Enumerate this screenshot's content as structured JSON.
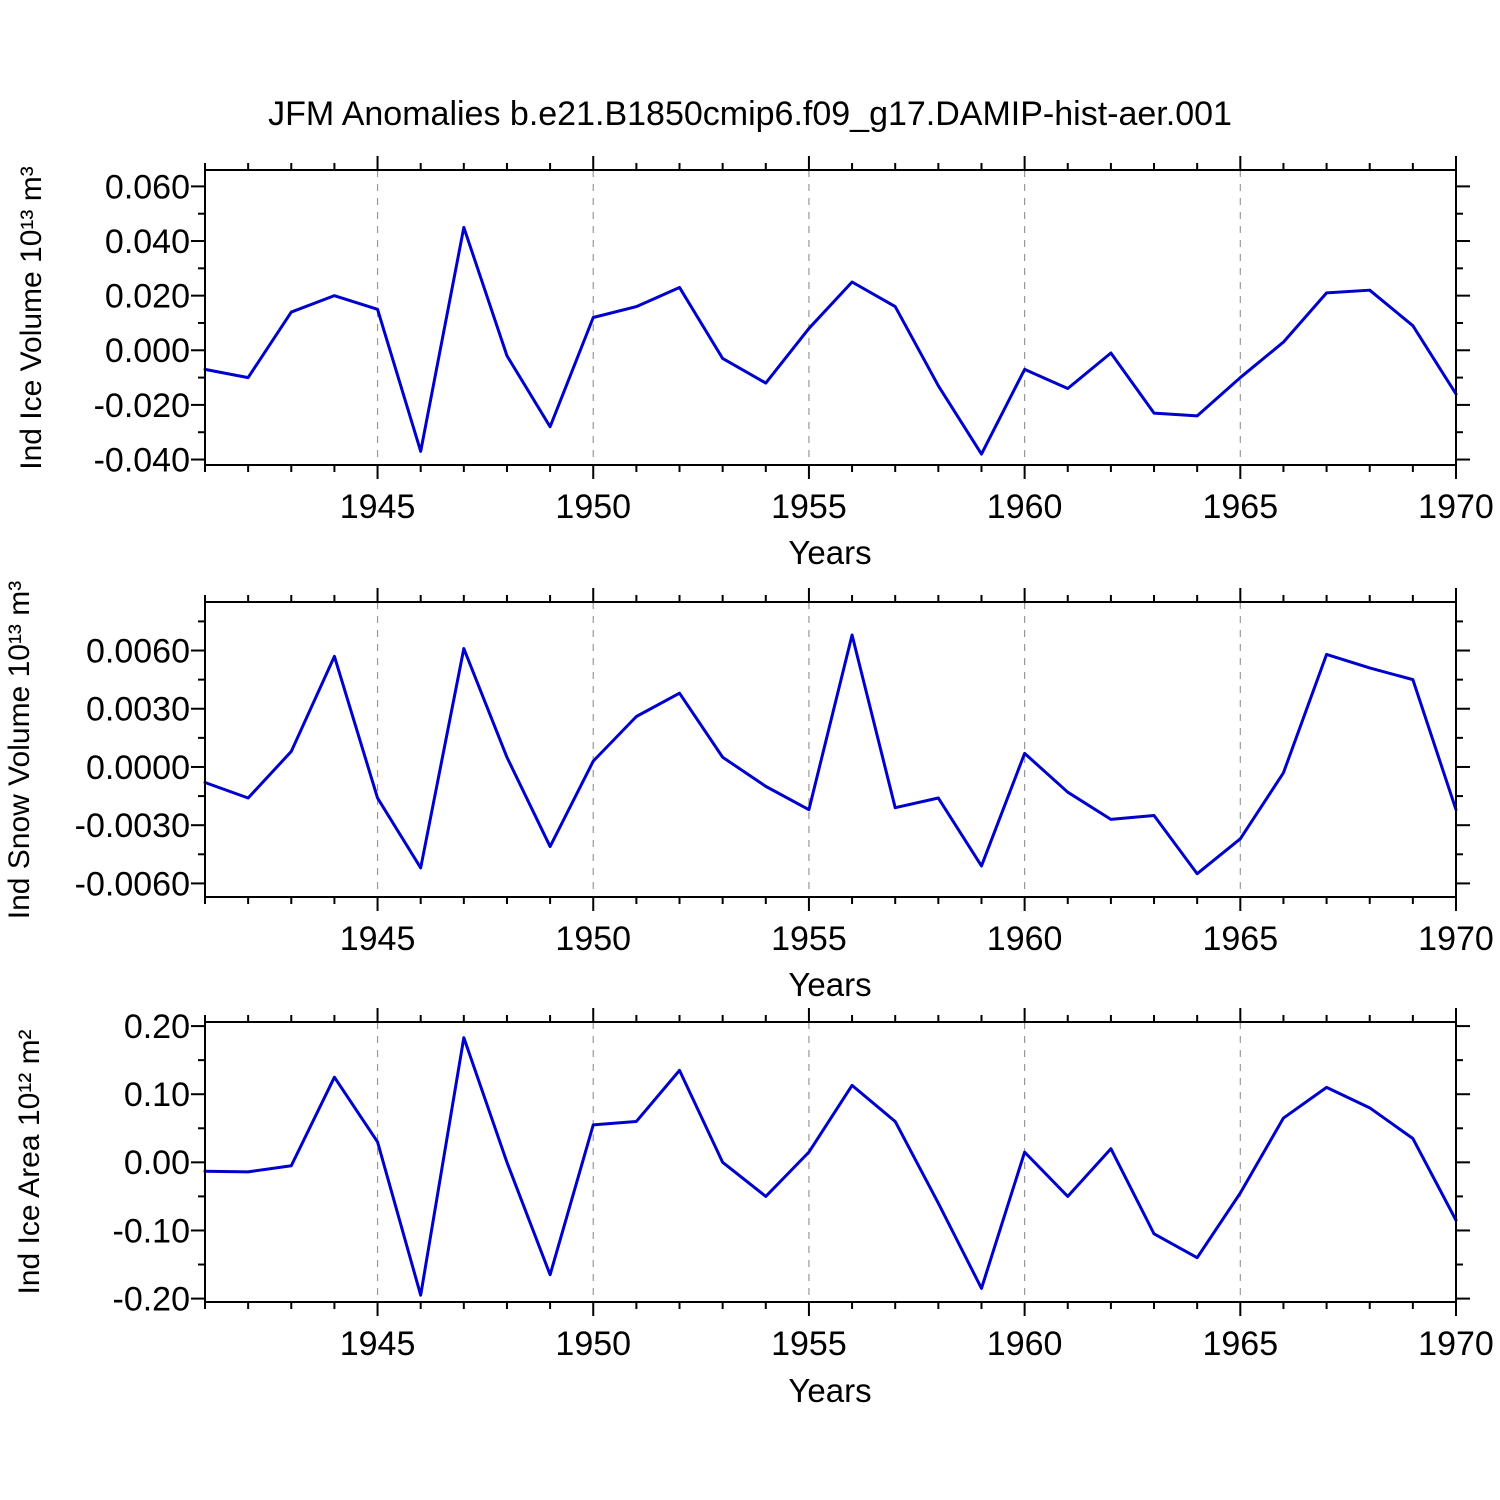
{
  "title": "JFM Anomalies b.e21.B1850cmip6.f09_g17.DAMIP-hist-aer.001",
  "colors": {
    "line": "#0000cd",
    "grid": "#999999",
    "axis": "#000000"
  },
  "chart_data": [
    {
      "type": "line",
      "name": "ice-volume",
      "ylabel": "Ind Ice Volume 10¹³ m³",
      "xlabel": "Years",
      "xlim": [
        1941,
        1970
      ],
      "ylim": [
        -0.042,
        0.066
      ],
      "x": [
        1941,
        1942,
        1943,
        1944,
        1945,
        1946,
        1947,
        1948,
        1949,
        1950,
        1951,
        1952,
        1953,
        1954,
        1955,
        1956,
        1957,
        1958,
        1959,
        1960,
        1961,
        1962,
        1963,
        1964,
        1965,
        1966,
        1967,
        1968,
        1969,
        1970
      ],
      "values": [
        -0.007,
        -0.01,
        0.014,
        0.02,
        0.015,
        -0.037,
        0.045,
        -0.002,
        -0.028,
        0.012,
        0.016,
        0.023,
        -0.003,
        -0.012,
        0.008,
        0.025,
        0.016,
        -0.013,
        -0.038,
        -0.007,
        -0.014,
        -0.001,
        -0.023,
        -0.024,
        -0.01,
        0.003,
        0.021,
        0.022,
        0.009,
        -0.016
      ],
      "xticks": [
        1945,
        1950,
        1955,
        1960,
        1965,
        1970
      ],
      "xtick_labels": [
        "1945",
        "1950",
        "1955",
        "1960",
        "1965",
        "1970"
      ],
      "x_minor_step": 1,
      "ytick_values": [
        0.06,
        0.04,
        0.02,
        0.0,
        -0.02,
        -0.04
      ],
      "ytick_labels": [
        "0.060",
        "0.040",
        "0.020",
        "0.000",
        "-0.020",
        "-0.040"
      ],
      "y_minor_step": 0.01,
      "grid_years": [
        1945,
        1950,
        1955,
        1960,
        1965
      ],
      "grid": "vertical-dashed",
      "legend": "none"
    },
    {
      "type": "line",
      "name": "snow-volume",
      "ylabel": "Ind Snow Volume 10¹³ m³",
      "xlabel": "Years",
      "xlim": [
        1941,
        1970
      ],
      "ylim": [
        -0.0067,
        0.0085
      ],
      "x": [
        1941,
        1942,
        1943,
        1944,
        1945,
        1946,
        1947,
        1948,
        1949,
        1950,
        1951,
        1952,
        1953,
        1954,
        1955,
        1956,
        1957,
        1958,
        1959,
        1960,
        1961,
        1962,
        1963,
        1964,
        1965,
        1966,
        1967,
        1968,
        1969,
        1970
      ],
      "values": [
        -0.0008,
        -0.0016,
        0.0008,
        0.0057,
        -0.0016,
        -0.0052,
        0.0061,
        0.0005,
        -0.0041,
        0.0003,
        0.0026,
        0.0038,
        0.0005,
        -0.001,
        -0.0022,
        0.0068,
        -0.0021,
        -0.0016,
        -0.0051,
        0.0007,
        -0.0013,
        -0.0027,
        -0.0025,
        -0.0055,
        -0.0037,
        -0.0003,
        0.0058,
        0.0051,
        0.0045,
        -0.0022
      ],
      "xticks": [
        1945,
        1950,
        1955,
        1960,
        1965,
        1970
      ],
      "xtick_labels": [
        "1945",
        "1950",
        "1955",
        "1960",
        "1965",
        "1970"
      ],
      "x_minor_step": 1,
      "ytick_values": [
        0.006,
        0.003,
        0.0,
        -0.003,
        -0.006
      ],
      "ytick_labels": [
        "0.0060",
        "0.0030",
        "0.0000",
        "-0.0030",
        "-0.0060"
      ],
      "y_minor_step": 0.0015,
      "grid_years": [
        1945,
        1950,
        1955,
        1960,
        1965
      ],
      "grid": "vertical-dashed",
      "legend": "none"
    },
    {
      "type": "line",
      "name": "ice-area",
      "ylabel": "Ind Ice Area 10¹² m²",
      "xlabel": "Years",
      "xlim": [
        1941,
        1970
      ],
      "ylim": [
        -0.205,
        0.206
      ],
      "x": [
        1941,
        1942,
        1943,
        1944,
        1945,
        1946,
        1947,
        1948,
        1949,
        1950,
        1951,
        1952,
        1953,
        1954,
        1955,
        1956,
        1957,
        1958,
        1959,
        1960,
        1961,
        1962,
        1963,
        1964,
        1965,
        1966,
        1967,
        1968,
        1969,
        1970
      ],
      "values": [
        -0.013,
        -0.014,
        -0.005,
        0.125,
        0.03,
        -0.195,
        0.183,
        0.0,
        -0.165,
        0.055,
        0.06,
        0.135,
        0.0,
        -0.05,
        0.015,
        0.113,
        0.06,
        -0.06,
        -0.185,
        0.015,
        -0.05,
        0.02,
        -0.105,
        -0.14,
        -0.045,
        0.065,
        0.11,
        0.08,
        0.035,
        -0.085
      ],
      "xticks": [
        1945,
        1950,
        1955,
        1960,
        1965,
        1970
      ],
      "xtick_labels": [
        "1945",
        "1950",
        "1955",
        "1960",
        "1965",
        "1970"
      ],
      "x_minor_step": 1,
      "ytick_values": [
        0.2,
        0.1,
        0.0,
        -0.1,
        -0.2
      ],
      "ytick_labels": [
        "0.20",
        "0.10",
        "0.00",
        "-0.10",
        "-0.20"
      ],
      "y_minor_step": 0.05,
      "grid_years": [
        1945,
        1950,
        1955,
        1960,
        1965
      ],
      "grid": "vertical-dashed",
      "legend": "none"
    }
  ]
}
